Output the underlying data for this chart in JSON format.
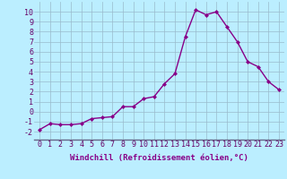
{
  "x": [
    0,
    1,
    2,
    3,
    4,
    5,
    6,
    7,
    8,
    9,
    10,
    11,
    12,
    13,
    14,
    15,
    16,
    17,
    18,
    19,
    20,
    21,
    22,
    23
  ],
  "y": [
    -1.8,
    -1.2,
    -1.3,
    -1.3,
    -1.2,
    -0.7,
    -0.6,
    -0.5,
    0.5,
    0.5,
    1.3,
    1.5,
    2.8,
    3.8,
    7.5,
    10.2,
    9.7,
    10.0,
    8.5,
    7.0,
    5.0,
    4.5,
    3.0,
    2.2
  ],
  "line_color": "#880088",
  "marker": "D",
  "marker_size": 2.0,
  "bg_color": "#bbeeff",
  "grid_color": "#99bbcc",
  "xlabel": "Windchill (Refroidissement éolien,°C)",
  "xlabel_fontsize": 6.5,
  "ylabel_ticks": [
    -2,
    -1,
    0,
    1,
    2,
    3,
    4,
    5,
    6,
    7,
    8,
    9,
    10
  ],
  "xtick_labels": [
    "0",
    "1",
    "2",
    "3",
    "4",
    "5",
    "6",
    "7",
    "8",
    "9",
    "10",
    "11",
    "12",
    "13",
    "14",
    "15",
    "16",
    "17",
    "18",
    "19",
    "20",
    "21",
    "22",
    "23"
  ],
  "ylim": [
    -2.8,
    11.0
  ],
  "xlim": [
    -0.5,
    23.5
  ],
  "tick_fontsize": 6.0,
  "linewidth": 1.0
}
